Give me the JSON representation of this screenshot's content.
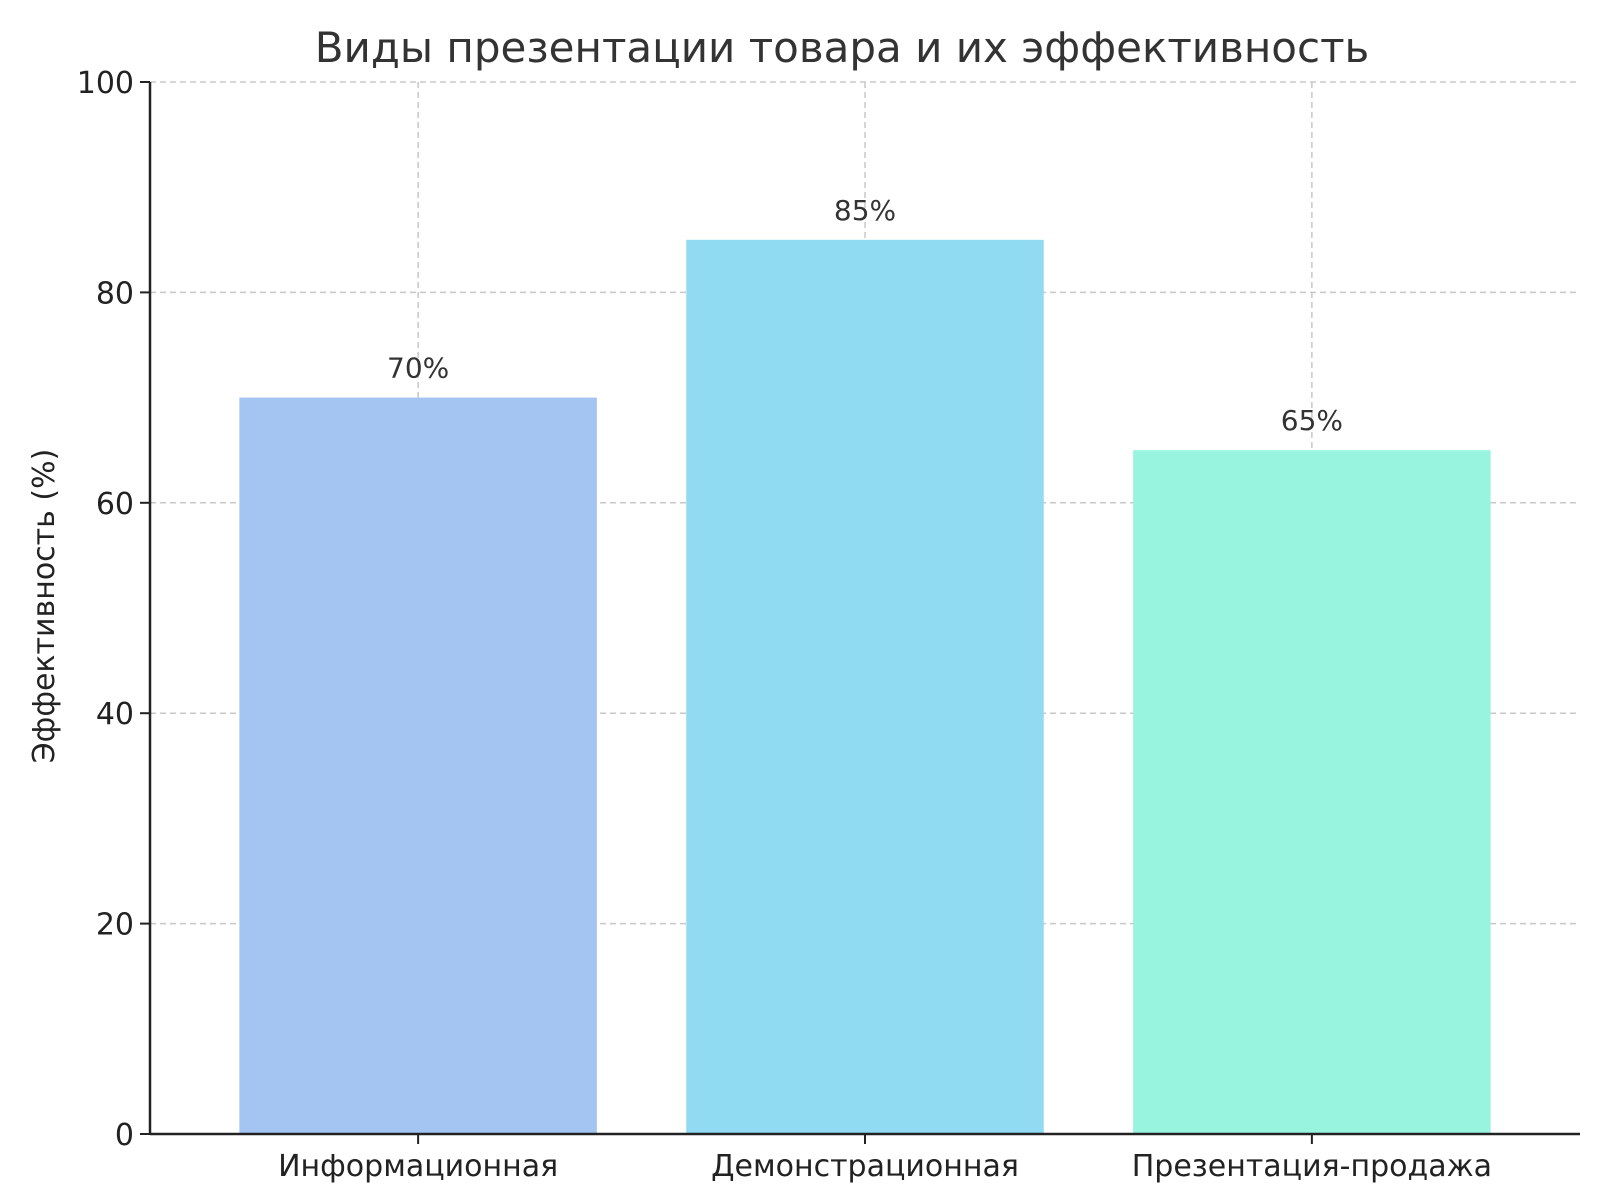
{
  "chart_data": {
    "type": "bar",
    "title": "Виды презентации товара и их эффективность",
    "xlabel": "",
    "ylabel": "Эффективность (%)",
    "categories": [
      "Информационная",
      "Демонстрационная",
      "Презентация-продажа"
    ],
    "values": [
      70,
      85,
      65
    ],
    "value_labels": [
      "70%",
      "85%",
      "65%"
    ],
    "colors": [
      "#a4c4f2",
      "#90dbf1",
      "#98f4df"
    ],
    "ylim": [
      0,
      100
    ],
    "yticks": [
      0,
      20,
      40,
      60,
      80,
      100
    ],
    "ytick_labels": [
      "0",
      "20",
      "40",
      "60",
      "80",
      "100"
    ],
    "grid": true,
    "legend": "none"
  }
}
